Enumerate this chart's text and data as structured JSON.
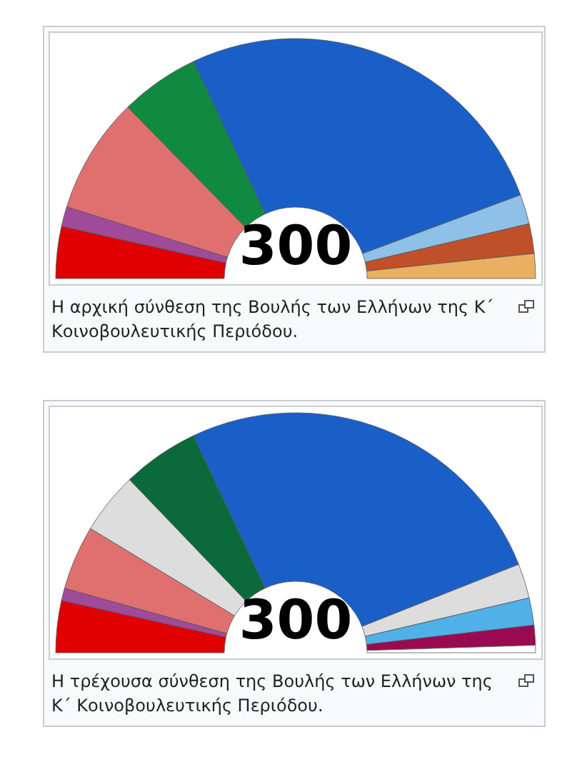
{
  "chart_data": [
    {
      "type": "donut",
      "categories": [
        null,
        null,
        null,
        null,
        null,
        null,
        null,
        null
      ],
      "values": [
        7,
        2.67,
        15.66,
        10.67,
        52.67,
        4,
        4,
        3.33
      ],
      "colors": [
        "#e00000",
        "#a04a9a",
        "#e07070",
        "#108a40",
        "#1a5fc8",
        "#8ec0e8",
        "#c0502a",
        "#e8b060"
      ],
      "annotations": [
        "300",
        "Η αρχική σύνθεση της Βουλής των Ελλήνων της Κ΄ Κοινοβουλευτικής Περιόδου."
      ]
    },
    {
      "type": "donut",
      "categories": [
        null,
        null,
        null,
        null,
        null,
        null,
        null,
        null,
        null,
        null
      ],
      "values": [
        7,
        1.67,
        8.66,
        8.33,
        10.33,
        52,
        4.67,
        3.67,
        2.67,
        1
      ],
      "colors": [
        "#e00000",
        "#a04a9a",
        "#e07070",
        "#dddddd",
        "#0a6a3a",
        "#1a5fc8",
        "#dddddd",
        "#50b0e8",
        "#9a0a50",
        "#ffffff"
      ],
      "annotations": [
        "300",
        "Η τρέχουσα σύνθεση της Βουλής των Ελλήνων της Κ΄ Κοινοβουλευτικής Περιόδου."
      ]
    }
  ]
}
